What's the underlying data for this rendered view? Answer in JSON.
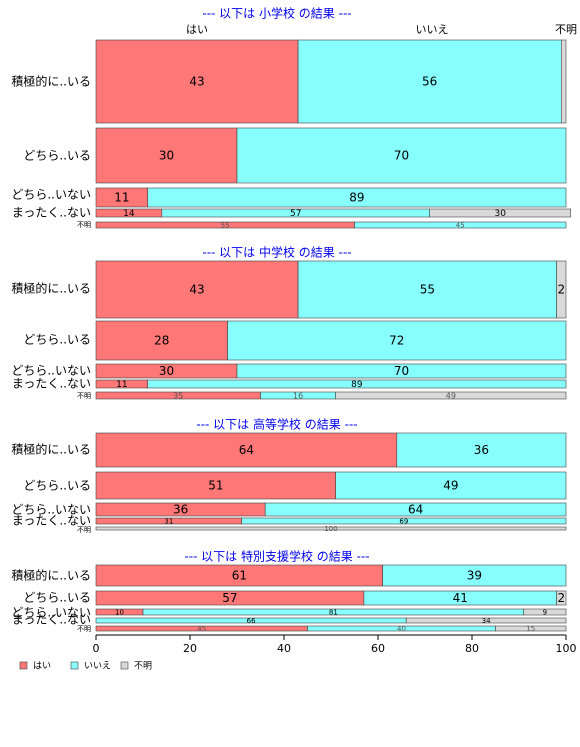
{
  "colors": {
    "yes": "#FF7777",
    "no": "#88FFFF",
    "unknown": "#D9D9D9",
    "title": "#0000EE"
  },
  "header_labels": [
    "はい",
    "いいえ",
    "不明"
  ],
  "legend": [
    "はい",
    "いいえ",
    "不明"
  ],
  "x_ticks": [
    "0",
    "20",
    "40",
    "60",
    "80",
    "100"
  ],
  "chart_data": {
    "type": "bar",
    "orientation": "horizontal",
    "stacked": "percent",
    "series_names": [
      "はい",
      "いいえ",
      "不明"
    ],
    "xlim": [
      0,
      100
    ],
    "panels": [
      {
        "title": "--- 以下は 小学校 の結果 ---",
        "rows": [
          {
            "label": "積極的に..いる",
            "values": [
              43,
              56,
              1
            ],
            "labels": [
              "43",
              "56",
              ""
            ]
          },
          {
            "label": "どちら..いる",
            "values": [
              30,
              70,
              0
            ],
            "labels": [
              "30",
              "70",
              ""
            ]
          },
          {
            "label": "どちら..いない",
            "values": [
              11,
              89,
              0
            ],
            "labels": [
              "11",
              "89",
              ""
            ]
          },
          {
            "label": "まったく..ない",
            "values": [
              14,
              57,
              30
            ],
            "labels": [
              "14",
              "57",
              "30"
            ]
          },
          {
            "label": "不明",
            "values": [
              55,
              45,
              0
            ],
            "labels": [
              "55",
              "45",
              ""
            ]
          }
        ]
      },
      {
        "title": "--- 以下は 中学校 の結果 ---",
        "rows": [
          {
            "label": "積極的に..いる",
            "values": [
              43,
              55,
              2
            ],
            "labels": [
              "43",
              "55",
              "2"
            ]
          },
          {
            "label": "どちら..いる",
            "values": [
              28,
              72,
              0
            ],
            "labels": [
              "28",
              "72",
              ""
            ]
          },
          {
            "label": "どちら..いない",
            "values": [
              30,
              70,
              0
            ],
            "labels": [
              "30",
              "70",
              ""
            ]
          },
          {
            "label": "まったく..ない",
            "values": [
              11,
              89,
              0
            ],
            "labels": [
              "11",
              "89",
              ""
            ]
          },
          {
            "label": "不明",
            "values": [
              35,
              16,
              49
            ],
            "labels": [
              "35",
              "16",
              "49"
            ]
          }
        ]
      },
      {
        "title": "--- 以下は 高等学校 の結果 ---",
        "rows": [
          {
            "label": "積極的に..いる",
            "values": [
              64,
              36,
              0
            ],
            "labels": [
              "64",
              "36",
              ""
            ]
          },
          {
            "label": "どちら..いる",
            "values": [
              51,
              49,
              0
            ],
            "labels": [
              "51",
              "49",
              ""
            ]
          },
          {
            "label": "どちら..いない",
            "values": [
              36,
              64,
              0
            ],
            "labels": [
              "36",
              "64",
              ""
            ]
          },
          {
            "label": "まったく..ない",
            "values": [
              31,
              69,
              0
            ],
            "labels": [
              "31",
              "69",
              ""
            ]
          },
          {
            "label": "不明",
            "values": [
              0,
              0,
              100
            ],
            "labels": [
              "",
              "",
              "100"
            ]
          }
        ]
      },
      {
        "title": "--- 以下は 特別支援学校 の結果 ---",
        "rows": [
          {
            "label": "積極的に..いる",
            "values": [
              61,
              39,
              0
            ],
            "labels": [
              "61",
              "39",
              ""
            ]
          },
          {
            "label": "どちら..いる",
            "values": [
              57,
              41,
              2
            ],
            "labels": [
              "57",
              "41",
              "2"
            ]
          },
          {
            "label": "どちら..いない",
            "values": [
              10,
              81,
              9
            ],
            "labels": [
              "10",
              "81",
              "9"
            ]
          },
          {
            "label": "まったく..ない",
            "values": [
              0,
              66,
              34
            ],
            "labels": [
              "",
              "66",
              "34"
            ]
          },
          {
            "label": "不明",
            "values": [
              45,
              40,
              15
            ],
            "labels": [
              "45",
              "40",
              "15"
            ]
          }
        ]
      }
    ]
  }
}
